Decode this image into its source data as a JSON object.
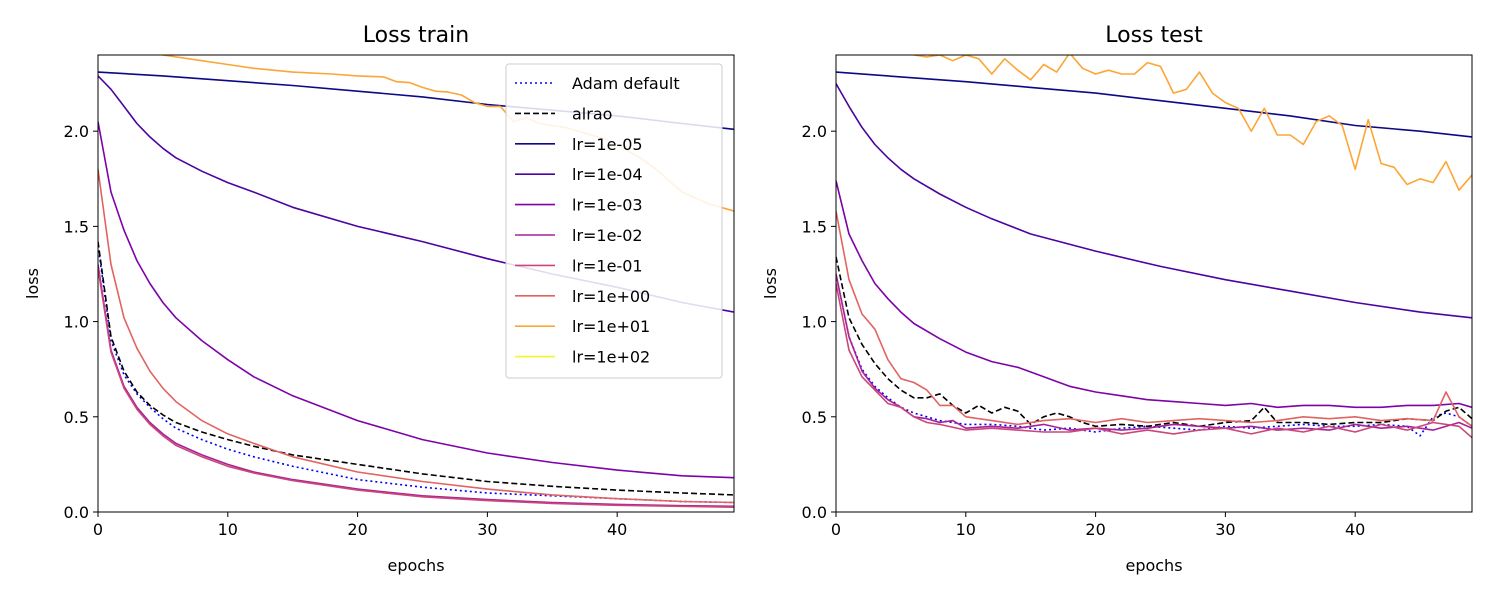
{
  "chart_data": [
    {
      "type": "line",
      "title": "Loss train",
      "xlabel": "epochs",
      "ylabel": "loss",
      "xlim": [
        0,
        49
      ],
      "ylim": [
        0,
        2.4
      ],
      "xticks": [
        0,
        10,
        20,
        30,
        40
      ],
      "yticks": [
        0.0,
        0.5,
        1.0,
        1.5,
        2.0
      ],
      "xtick_labels": [
        "0",
        "10",
        "20",
        "30",
        "40"
      ],
      "ytick_labels": [
        "0.0",
        "0.5",
        "1.0",
        "1.5",
        "2.0"
      ],
      "grid": false,
      "legend": "top-right",
      "series": [
        {
          "name": "Adam default",
          "color": "#0000ff",
          "dash": "dotted",
          "x": [
            0,
            1,
            2,
            3,
            4,
            5,
            6,
            8,
            10,
            12,
            15,
            20,
            25,
            30,
            35,
            40,
            45,
            49
          ],
          "y": [
            1.4,
            0.9,
            0.72,
            0.62,
            0.55,
            0.49,
            0.44,
            0.38,
            0.33,
            0.29,
            0.24,
            0.17,
            0.13,
            0.1,
            0.085,
            0.07,
            0.055,
            0.05
          ]
        },
        {
          "name": "alrao",
          "color": "#000000",
          "dash": "dashed",
          "x": [
            0,
            1,
            2,
            3,
            4,
            5,
            6,
            8,
            10,
            12,
            15,
            20,
            25,
            30,
            35,
            40,
            45,
            49
          ],
          "y": [
            1.42,
            0.92,
            0.74,
            0.63,
            0.56,
            0.51,
            0.47,
            0.42,
            0.38,
            0.345,
            0.3,
            0.25,
            0.2,
            0.16,
            0.135,
            0.115,
            0.1,
            0.09
          ]
        },
        {
          "name": "lr=1e-05",
          "color": "#0d0887",
          "dash": "solid",
          "x": [
            0,
            5,
            10,
            15,
            20,
            25,
            30,
            35,
            40,
            45,
            49
          ],
          "y": [
            2.31,
            2.29,
            2.265,
            2.24,
            2.21,
            2.18,
            2.14,
            2.11,
            2.08,
            2.04,
            2.01
          ]
        },
        {
          "name": "lr=1e-04",
          "color": "#4b03a1",
          "dash": "solid",
          "x": [
            0,
            1,
            2,
            3,
            4,
            5,
            6,
            8,
            10,
            12,
            15,
            20,
            25,
            30,
            35,
            40,
            45,
            49
          ],
          "y": [
            2.29,
            2.22,
            2.13,
            2.04,
            1.97,
            1.91,
            1.86,
            1.79,
            1.73,
            1.68,
            1.6,
            1.5,
            1.42,
            1.33,
            1.25,
            1.18,
            1.1,
            1.05
          ]
        },
        {
          "name": "lr=1e-03",
          "color": "#7d03a8",
          "dash": "solid",
          "x": [
            0,
            1,
            2,
            3,
            4,
            5,
            6,
            8,
            10,
            12,
            15,
            20,
            25,
            30,
            35,
            40,
            45,
            49
          ],
          "y": [
            2.05,
            1.68,
            1.48,
            1.32,
            1.2,
            1.1,
            1.02,
            0.9,
            0.8,
            0.71,
            0.61,
            0.48,
            0.38,
            0.31,
            0.26,
            0.22,
            0.19,
            0.18
          ]
        },
        {
          "name": "lr=1e-02",
          "color": "#a82296",
          "dash": "solid",
          "x": [
            0,
            1,
            2,
            3,
            4,
            5,
            6,
            8,
            10,
            12,
            15,
            20,
            25,
            30,
            35,
            40,
            45,
            49
          ],
          "y": [
            1.3,
            0.85,
            0.66,
            0.55,
            0.47,
            0.41,
            0.36,
            0.3,
            0.25,
            0.21,
            0.17,
            0.12,
            0.085,
            0.065,
            0.05,
            0.04,
            0.033,
            0.03
          ]
        },
        {
          "name": "lr=1e-01",
          "color": "#cb4679",
          "dash": "solid",
          "x": [
            0,
            1,
            2,
            3,
            4,
            5,
            6,
            8,
            10,
            12,
            15,
            20,
            25,
            30,
            35,
            40,
            45,
            49
          ],
          "y": [
            1.28,
            0.84,
            0.65,
            0.54,
            0.46,
            0.4,
            0.35,
            0.29,
            0.24,
            0.205,
            0.165,
            0.115,
            0.08,
            0.06,
            0.045,
            0.035,
            0.03,
            0.025
          ]
        },
        {
          "name": "lr=1e+00",
          "color": "#e16462",
          "dash": "solid",
          "x": [
            0,
            1,
            2,
            3,
            4,
            5,
            6,
            8,
            10,
            12,
            15,
            20,
            25,
            30,
            35,
            40,
            45,
            49
          ],
          "y": [
            1.8,
            1.3,
            1.02,
            0.86,
            0.74,
            0.65,
            0.58,
            0.48,
            0.41,
            0.36,
            0.29,
            0.21,
            0.16,
            0.12,
            0.09,
            0.07,
            0.055,
            0.05
          ]
        },
        {
          "name": "lr=1e+01",
          "color": "#fca636",
          "dash": "solid",
          "x": [
            5,
            8,
            10,
            12,
            15,
            18,
            20,
            22,
            23,
            24,
            25,
            26,
            27,
            28,
            29,
            30,
            31,
            32,
            33,
            34,
            35,
            36,
            37,
            38,
            39,
            40,
            41,
            42,
            43,
            44,
            45,
            46,
            47,
            48,
            49
          ],
          "y": [
            2.4,
            2.37,
            2.35,
            2.33,
            2.31,
            2.3,
            2.29,
            2.285,
            2.26,
            2.255,
            2.23,
            2.21,
            2.205,
            2.19,
            2.15,
            2.13,
            2.13,
            2.05,
            2.07,
            2.04,
            2.03,
            2.02,
            2.0,
            1.98,
            1.96,
            1.93,
            1.89,
            1.85,
            1.8,
            1.74,
            1.68,
            1.65,
            1.62,
            1.6,
            1.58
          ]
        },
        {
          "name": "lr=1e+02",
          "color": "#f0f921",
          "dash": "solid",
          "x": [],
          "y": []
        }
      ]
    },
    {
      "type": "line",
      "title": "Loss test",
      "xlabel": "epochs",
      "ylabel": "loss",
      "xlim": [
        0,
        49
      ],
      "ylim": [
        0,
        2.4
      ],
      "xticks": [
        0,
        10,
        20,
        30,
        40
      ],
      "yticks": [
        0.0,
        0.5,
        1.0,
        1.5,
        2.0
      ],
      "xtick_labels": [
        "0",
        "10",
        "20",
        "30",
        "40"
      ],
      "ytick_labels": [
        "0.0",
        "0.5",
        "1.0",
        "1.5",
        "2.0"
      ],
      "grid": false,
      "series": [
        {
          "name": "Adam default",
          "color": "#0000ff",
          "dash": "dotted",
          "x": [
            0,
            1,
            2,
            3,
            4,
            5,
            6,
            7,
            8,
            9,
            10,
            12,
            14,
            16,
            18,
            20,
            22,
            24,
            26,
            28,
            30,
            32,
            34,
            36,
            38,
            40,
            42,
            44,
            45,
            46,
            47,
            48,
            49
          ],
          "y": [
            1.25,
            0.92,
            0.75,
            0.66,
            0.6,
            0.55,
            0.52,
            0.5,
            0.48,
            0.47,
            0.46,
            0.46,
            0.45,
            0.43,
            0.44,
            0.42,
            0.44,
            0.45,
            0.44,
            0.43,
            0.45,
            0.44,
            0.45,
            0.46,
            0.45,
            0.45,
            0.46,
            0.45,
            0.4,
            0.5,
            0.52,
            0.5,
            0.45
          ]
        },
        {
          "name": "alrao",
          "color": "#000000",
          "dash": "dashed",
          "x": [
            0,
            1,
            2,
            3,
            4,
            5,
            6,
            7,
            8,
            9,
            10,
            11,
            12,
            13,
            14,
            15,
            16,
            17,
            18,
            19,
            20,
            22,
            24,
            26,
            28,
            30,
            32,
            33,
            34,
            36,
            38,
            40,
            42,
            44,
            46,
            47,
            48,
            49
          ],
          "y": [
            1.34,
            1.02,
            0.88,
            0.78,
            0.7,
            0.64,
            0.6,
            0.6,
            0.62,
            0.56,
            0.52,
            0.56,
            0.52,
            0.55,
            0.53,
            0.46,
            0.5,
            0.52,
            0.5,
            0.47,
            0.45,
            0.46,
            0.45,
            0.47,
            0.45,
            0.47,
            0.48,
            0.55,
            0.47,
            0.47,
            0.46,
            0.47,
            0.47,
            0.49,
            0.48,
            0.53,
            0.55,
            0.49
          ]
        },
        {
          "name": "lr=1e-05",
          "color": "#0d0887",
          "dash": "solid",
          "x": [
            0,
            5,
            10,
            15,
            20,
            25,
            30,
            35,
            40,
            45,
            49
          ],
          "y": [
            2.31,
            2.285,
            2.26,
            2.23,
            2.2,
            2.16,
            2.12,
            2.08,
            2.03,
            2.0,
            1.97
          ]
        },
        {
          "name": "lr=1e-04",
          "color": "#4b03a1",
          "dash": "solid",
          "x": [
            0,
            1,
            2,
            3,
            4,
            5,
            6,
            8,
            10,
            12,
            15,
            20,
            25,
            30,
            35,
            40,
            45,
            49
          ],
          "y": [
            2.25,
            2.13,
            2.02,
            1.93,
            1.86,
            1.8,
            1.75,
            1.67,
            1.6,
            1.54,
            1.46,
            1.37,
            1.29,
            1.22,
            1.16,
            1.1,
            1.05,
            1.02
          ]
        },
        {
          "name": "lr=1e-03",
          "color": "#7d03a8",
          "dash": "solid",
          "x": [
            0,
            1,
            2,
            3,
            4,
            5,
            6,
            8,
            10,
            12,
            14,
            16,
            18,
            20,
            22,
            24,
            26,
            28,
            30,
            32,
            34,
            36,
            38,
            40,
            42,
            44,
            46,
            48,
            49
          ],
          "y": [
            1.74,
            1.46,
            1.32,
            1.2,
            1.12,
            1.05,
            0.99,
            0.91,
            0.84,
            0.79,
            0.76,
            0.71,
            0.66,
            0.63,
            0.61,
            0.59,
            0.58,
            0.57,
            0.56,
            0.57,
            0.55,
            0.56,
            0.56,
            0.55,
            0.55,
            0.56,
            0.56,
            0.57,
            0.55
          ]
        },
        {
          "name": "lr=1e-02",
          "color": "#a82296",
          "dash": "solid",
          "x": [
            0,
            1,
            2,
            3,
            4,
            5,
            6,
            7,
            8,
            9,
            10,
            12,
            14,
            16,
            18,
            20,
            22,
            24,
            26,
            28,
            30,
            32,
            34,
            36,
            38,
            40,
            42,
            44,
            46,
            48,
            49
          ],
          "y": [
            1.25,
            0.92,
            0.74,
            0.65,
            0.59,
            0.55,
            0.5,
            0.49,
            0.47,
            0.48,
            0.44,
            0.45,
            0.44,
            0.46,
            0.43,
            0.44,
            0.43,
            0.44,
            0.46,
            0.45,
            0.44,
            0.45,
            0.43,
            0.44,
            0.43,
            0.46,
            0.44,
            0.45,
            0.43,
            0.47,
            0.44
          ]
        },
        {
          "name": "lr=1e-01",
          "color": "#cb4679",
          "dash": "solid",
          "x": [
            0,
            1,
            2,
            3,
            4,
            5,
            6,
            7,
            8,
            10,
            12,
            14,
            16,
            18,
            20,
            22,
            24,
            26,
            28,
            30,
            32,
            34,
            36,
            38,
            40,
            42,
            44,
            46,
            48,
            49
          ],
          "y": [
            1.2,
            0.85,
            0.71,
            0.64,
            0.57,
            0.55,
            0.5,
            0.47,
            0.46,
            0.43,
            0.44,
            0.43,
            0.42,
            0.42,
            0.44,
            0.41,
            0.43,
            0.41,
            0.43,
            0.44,
            0.41,
            0.44,
            0.42,
            0.45,
            0.42,
            0.46,
            0.43,
            0.47,
            0.45,
            0.39
          ]
        },
        {
          "name": "lr=1e+00",
          "color": "#e16462",
          "dash": "solid",
          "x": [
            0,
            1,
            2,
            3,
            4,
            5,
            6,
            7,
            8,
            9,
            10,
            12,
            14,
            16,
            18,
            20,
            22,
            24,
            26,
            28,
            30,
            32,
            34,
            36,
            38,
            40,
            42,
            44,
            46,
            47,
            48,
            49
          ],
          "y": [
            1.58,
            1.22,
            1.04,
            0.96,
            0.8,
            0.7,
            0.68,
            0.64,
            0.56,
            0.56,
            0.5,
            0.48,
            0.46,
            0.48,
            0.49,
            0.47,
            0.49,
            0.47,
            0.48,
            0.49,
            0.48,
            0.47,
            0.48,
            0.5,
            0.49,
            0.5,
            0.48,
            0.49,
            0.48,
            0.63,
            0.5,
            0.45
          ]
        },
        {
          "name": "lr=1e+01",
          "color": "#fca636",
          "dash": "solid",
          "x": [
            6,
            7,
            8,
            9,
            10,
            11,
            12,
            13,
            14,
            15,
            16,
            17,
            18,
            19,
            20,
            21,
            22,
            23,
            24,
            25,
            26,
            27,
            28,
            29,
            30,
            31,
            32,
            33,
            34,
            35,
            36,
            37,
            38,
            39,
            40,
            41,
            42,
            43,
            44,
            45,
            46,
            47,
            48,
            49
          ],
          "y": [
            2.4,
            2.39,
            2.4,
            2.37,
            2.4,
            2.38,
            2.3,
            2.38,
            2.32,
            2.27,
            2.35,
            2.31,
            2.41,
            2.33,
            2.3,
            2.32,
            2.3,
            2.3,
            2.36,
            2.34,
            2.2,
            2.22,
            2.31,
            2.2,
            2.15,
            2.12,
            2.0,
            2.12,
            1.98,
            1.98,
            1.93,
            2.05,
            2.08,
            2.03,
            1.8,
            2.06,
            1.83,
            1.81,
            1.72,
            1.75,
            1.73,
            1.84,
            1.69,
            1.77
          ]
        },
        {
          "name": "lr=1e+02",
          "color": "#f0f921",
          "dash": "solid",
          "x": [],
          "y": []
        }
      ]
    }
  ]
}
